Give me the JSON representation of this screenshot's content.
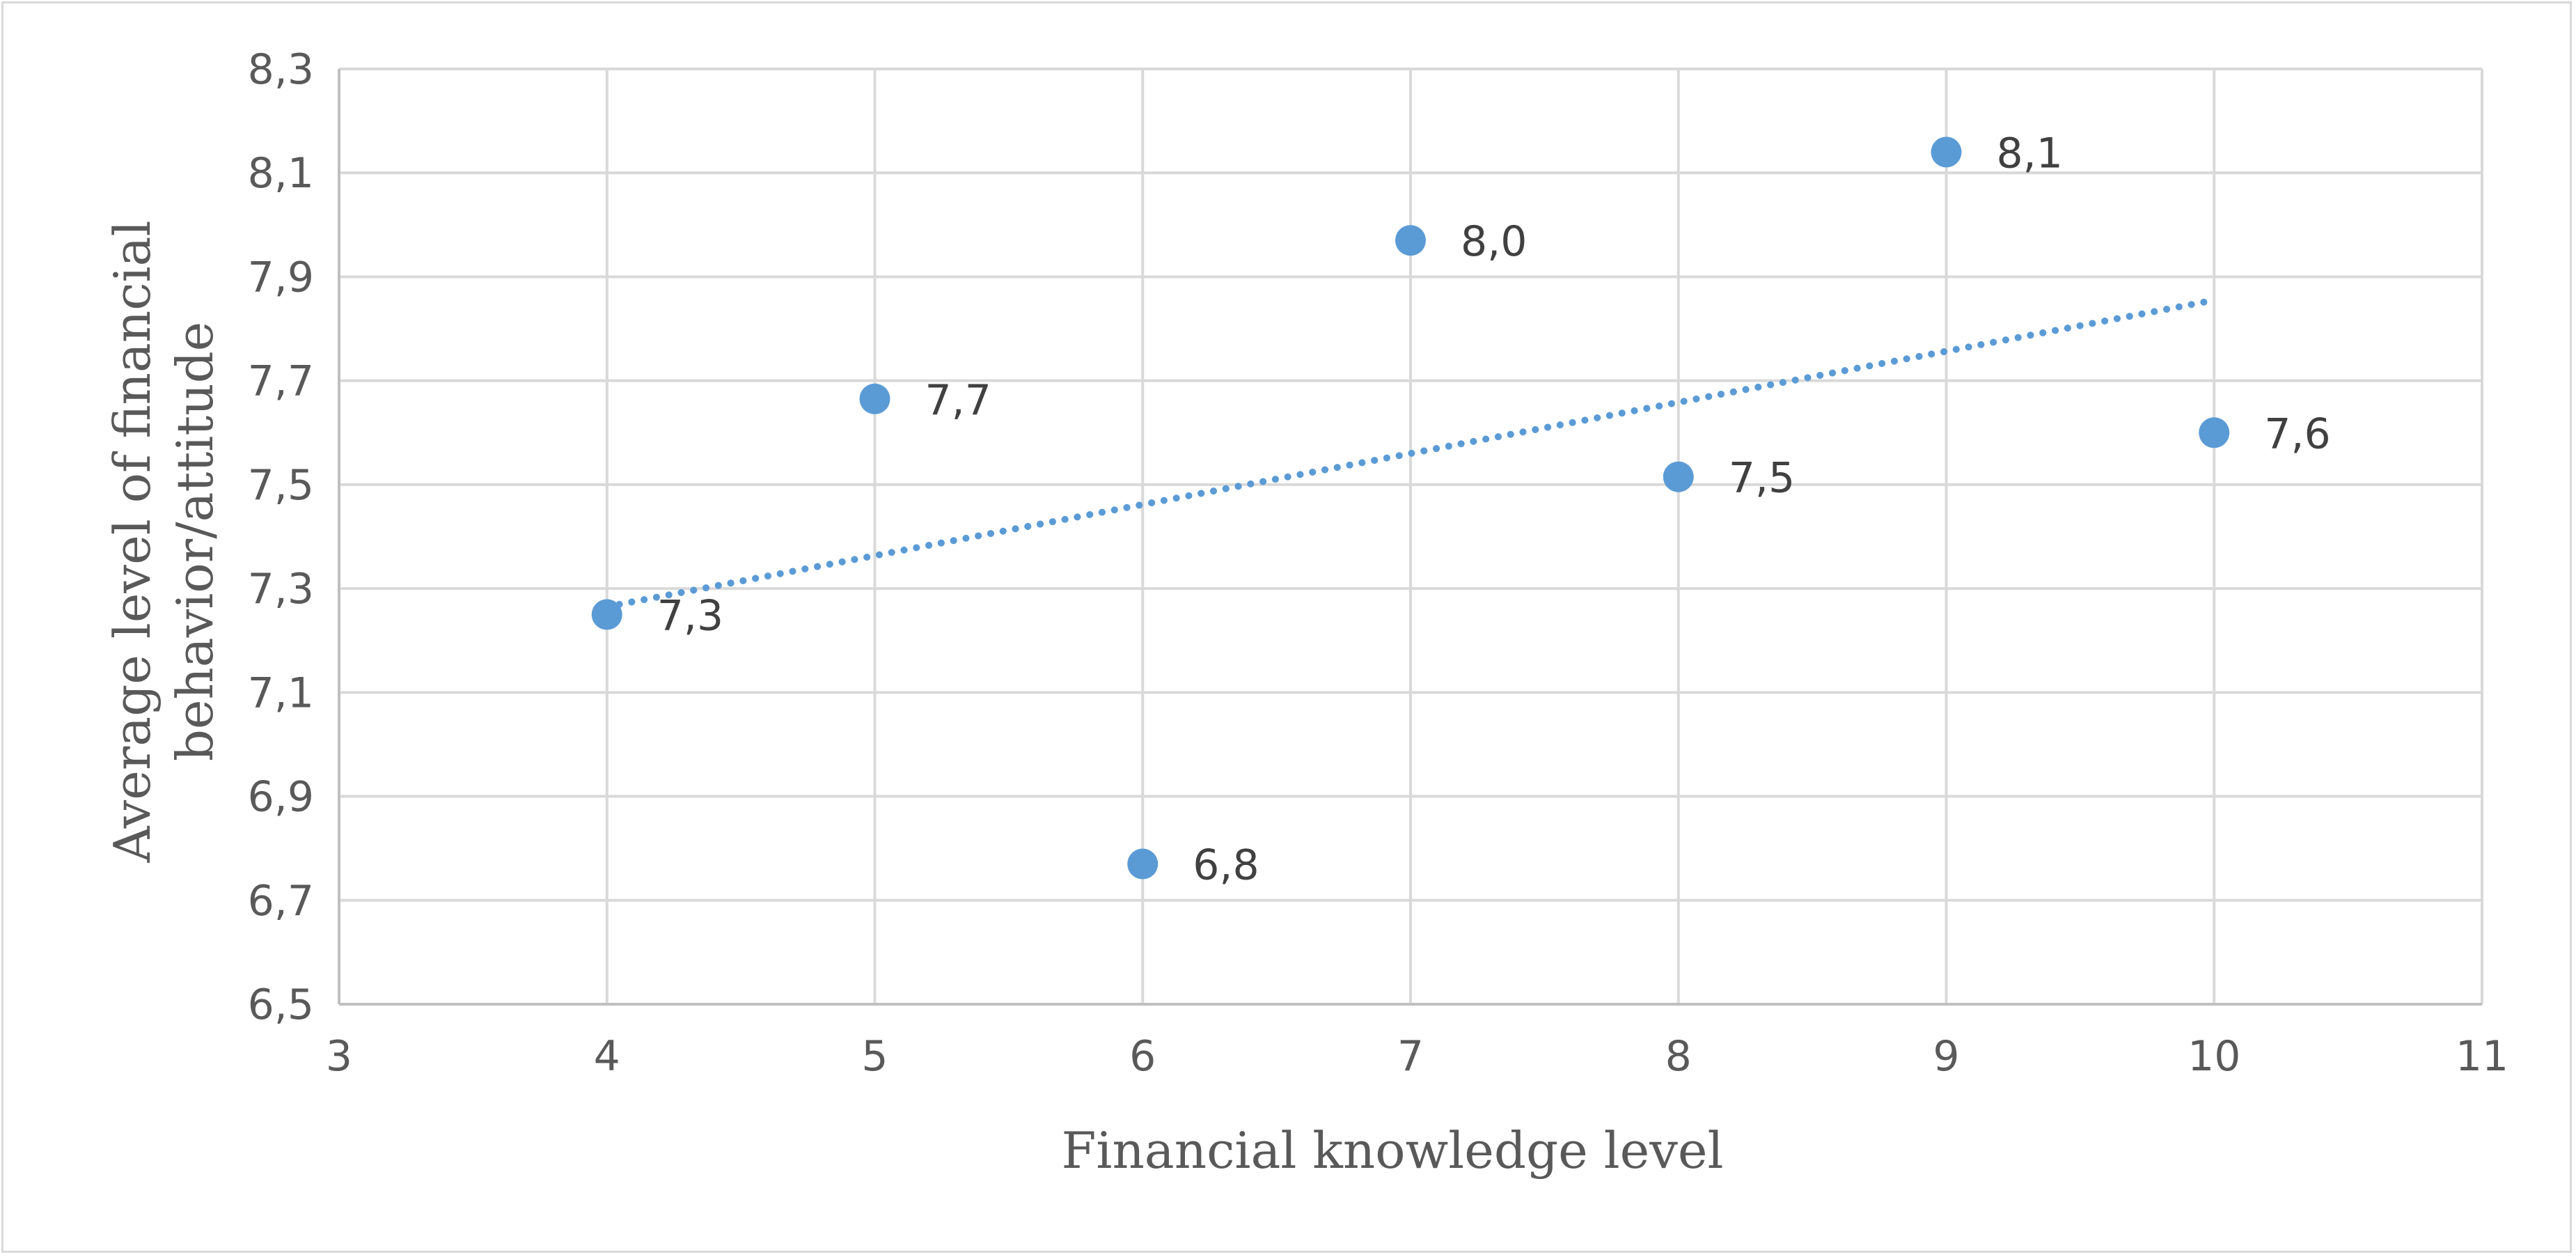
{
  "chart_data": {
    "type": "scatter",
    "title": "",
    "xlabel": "Financial knowledge level",
    "ylabel": "Average level of financial behavior/attitude",
    "ylabel_lines": [
      "Average level of financial",
      "behavior/attitude"
    ],
    "xlim": [
      3,
      11
    ],
    "ylim": [
      6.5,
      8.3
    ],
    "x_ticks": [
      3,
      4,
      5,
      6,
      7,
      8,
      9,
      10,
      11
    ],
    "x_tick_labels": [
      "3",
      "4",
      "5",
      "6",
      "7",
      "8",
      "9",
      "10",
      "11"
    ],
    "y_ticks": [
      6.5,
      6.7,
      6.9,
      7.1,
      7.3,
      7.5,
      7.7,
      7.9,
      8.1,
      8.3
    ],
    "y_tick_labels": [
      "6,5",
      "6,7",
      "6,9",
      "7,1",
      "7,3",
      "7,5",
      "7,7",
      "7,9",
      "8,1",
      "8,3"
    ],
    "grid": true,
    "legend": "none",
    "series": [
      {
        "points": [
          {
            "x": 4,
            "y": 7.25,
            "label": "7,3"
          },
          {
            "x": 5,
            "y": 7.665,
            "label": "7,7"
          },
          {
            "x": 6,
            "y": 6.77,
            "label": "6,8"
          },
          {
            "x": 7,
            "y": 7.97,
            "label": "8,0"
          },
          {
            "x": 8,
            "y": 7.515,
            "label": "7,5"
          },
          {
            "x": 9,
            "y": 8.14,
            "label": "8,1"
          },
          {
            "x": 10,
            "y": 7.6,
            "label": "7,6"
          }
        ],
        "color": "#5b9bd5"
      }
    ],
    "trendline": {
      "type": "linear",
      "style": "dotted",
      "from": {
        "x": 4,
        "y": 7.265
      },
      "to": {
        "x": 10,
        "y": 7.855
      },
      "color": "#5b9bd5"
    }
  }
}
